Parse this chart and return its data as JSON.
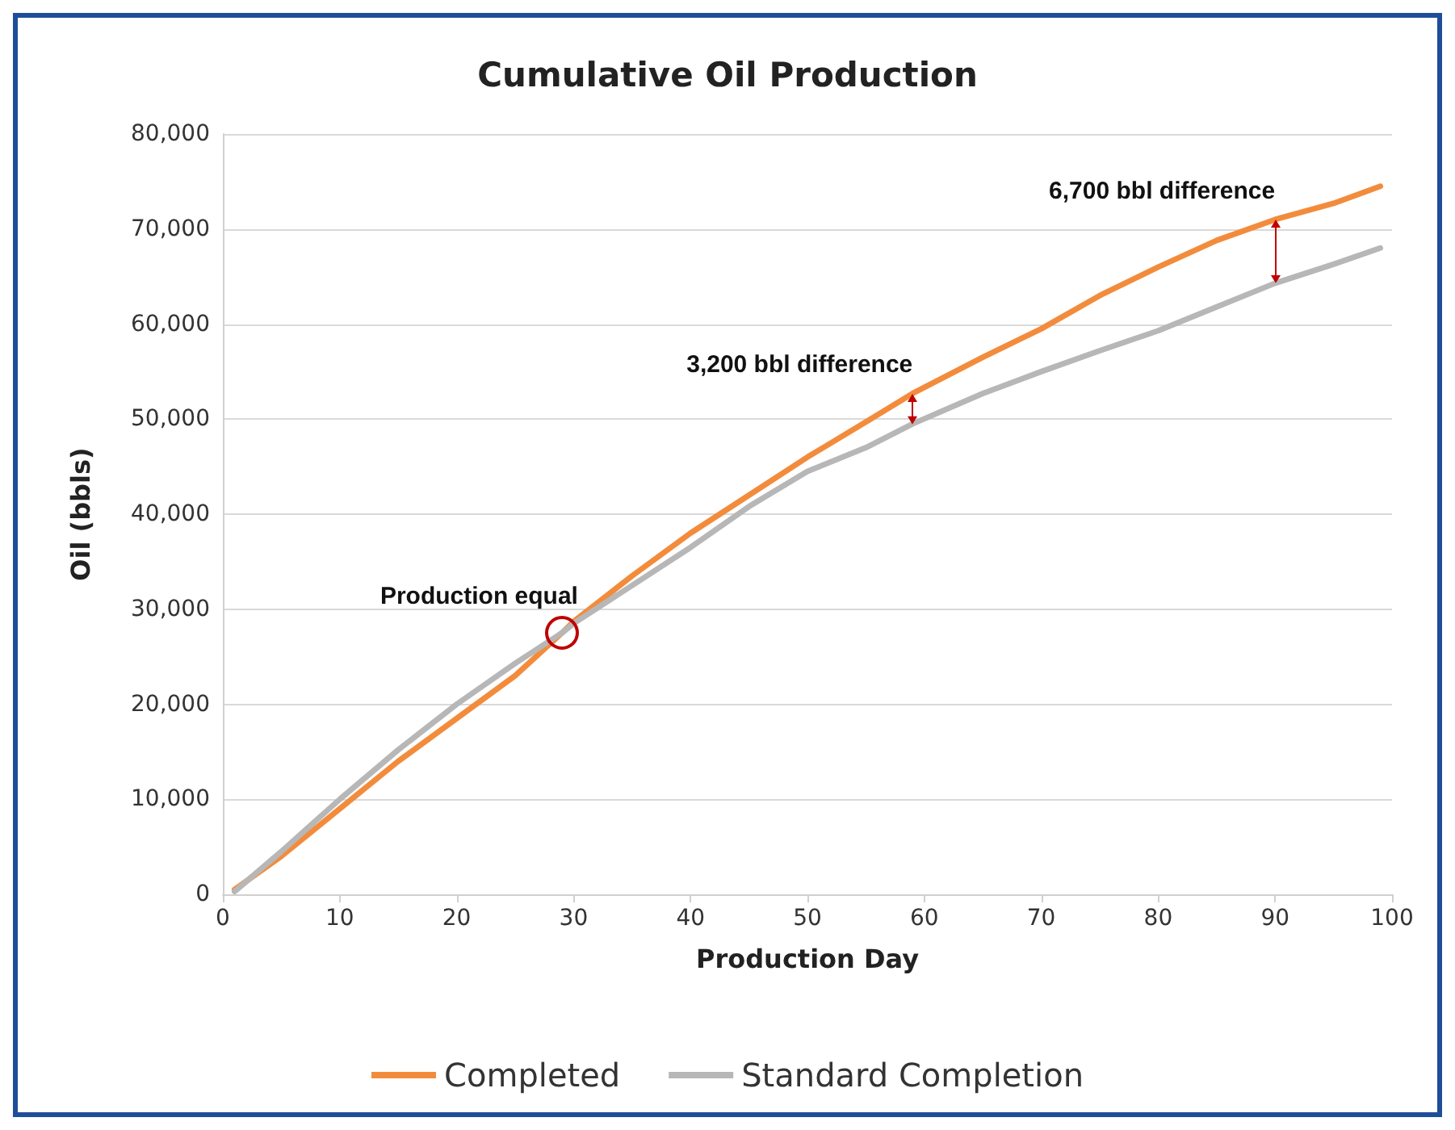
{
  "chart_data": {
    "type": "line",
    "title": "Cumulative Oil Production",
    "xlabel": "Production Day",
    "ylabel": "Oil (bbls)",
    "x": [
      1,
      5,
      10,
      15,
      20,
      25,
      29,
      30,
      35,
      40,
      45,
      50,
      55,
      59,
      65,
      70,
      75,
      80,
      85,
      90,
      95,
      99
    ],
    "series": [
      {
        "name": "Completed",
        "color": "#f28c3c",
        "values": [
          500,
          4000,
          9000,
          14000,
          18500,
          23000,
          27500,
          28700,
          33500,
          38000,
          42000,
          46000,
          49700,
          52700,
          56500,
          59500,
          63000,
          66000,
          68800,
          71000,
          72700,
          74500
        ]
      },
      {
        "name": "Standard Completion",
        "color": "#b7b7b7",
        "values": [
          300,
          4500,
          10000,
          15200,
          20000,
          24300,
          27500,
          28500,
          32500,
          36500,
          40800,
          44500,
          47000,
          49500,
          52700,
          55000,
          57200,
          59300,
          61800,
          64300,
          66300,
          68000
        ]
      }
    ],
    "xlim": [
      0,
      100
    ],
    "xticks": [
      0,
      10,
      20,
      30,
      40,
      50,
      60,
      70,
      80,
      90,
      100
    ],
    "ylim": [
      0,
      80000
    ],
    "yticks": [
      0,
      {
        "value": 10000,
        "label": "10,000"
      },
      {
        "value": 20000,
        "label": "20,000"
      },
      {
        "value": 30000,
        "label": "30,000"
      },
      {
        "value": 40000,
        "label": "40,000"
      },
      {
        "value": 50000,
        "label": "50,000"
      },
      {
        "value": 60000,
        "label": "60,000"
      },
      {
        "value": 70000,
        "label": "70,000"
      },
      {
        "value": 80000,
        "label": "80,000"
      }
    ],
    "grid": "y",
    "legend": "bottom",
    "marker": "none",
    "line_style": "solid",
    "annotations": [
      {
        "text": "Production equal",
        "x": 29,
        "y": 27500
      },
      {
        "text": "3,200 bbl difference",
        "x": 59,
        "y": 52700
      },
      {
        "text": "6,700 bbl difference",
        "x": 90,
        "y": 71000
      }
    ]
  }
}
